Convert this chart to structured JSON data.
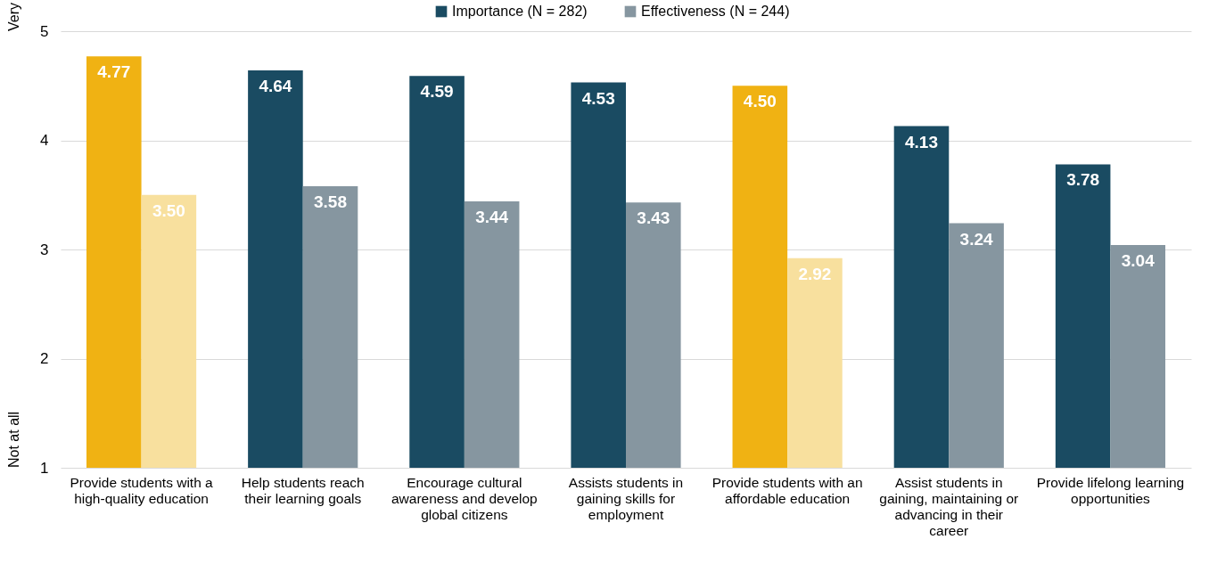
{
  "chart_data": {
    "type": "bar",
    "categories": [
      "Provide students with a\nhigh-quality education",
      "Help students reach\ntheir learning goals",
      "Encourage cultural\nawareness and develop\nglobal citizens",
      "Assists students in\ngaining skills for\nemployment",
      "Provide students with an\naffordable education",
      "Assist students in\ngaining, maintaining or\nadvancing in their\ncareer",
      "Provide lifelong learning\nopportunities"
    ],
    "series": [
      {
        "name": "Importance (N = 282)",
        "color": "#1a4b62",
        "colors": [
          "#f0b213",
          "#1a4b62",
          "#1a4b62",
          "#1a4b62",
          "#f0b213",
          "#1a4b62",
          "#1a4b62"
        ],
        "values": [
          4.77,
          4.64,
          4.59,
          4.53,
          4.5,
          4.13,
          3.78
        ],
        "value_labels": [
          "4.77",
          "4.64",
          "4.59",
          "4.53",
          "4.50",
          "4.13",
          "3.78"
        ]
      },
      {
        "name": "Effectiveness (N = 244)",
        "color": "#8696a0",
        "colors": [
          "#f8e09e",
          "#8696a0",
          "#8696a0",
          "#8696a0",
          "#f8e09e",
          "#8696a0",
          "#8696a0"
        ],
        "values": [
          3.5,
          3.58,
          3.44,
          3.43,
          2.92,
          3.24,
          3.04
        ],
        "value_labels": [
          "3.50",
          "3.58",
          "3.44",
          "3.43",
          "2.92",
          "3.24",
          "3.04"
        ]
      }
    ],
    "ylim": [
      1,
      5
    ],
    "yticks": [
      1,
      2,
      3,
      4,
      5
    ],
    "grid": "y",
    "legend": "top",
    "annotations": [
      "Very",
      "Not at all"
    ]
  }
}
